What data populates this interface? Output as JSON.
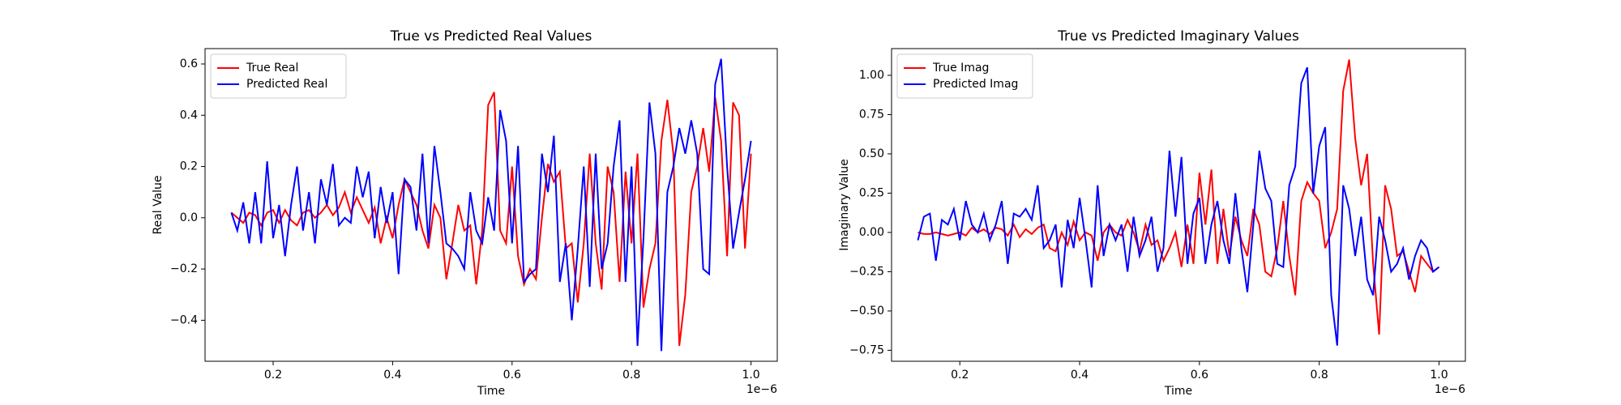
{
  "chart_data": [
    {
      "type": "line",
      "title": "True vs Predicted Real Values",
      "xlabel": "Time",
      "ylabel": "Real Value",
      "x_offset_label": "1e−6",
      "x": [
        0.13,
        0.14,
        0.15,
        0.16,
        0.17,
        0.18,
        0.19,
        0.2,
        0.21,
        0.22,
        0.23,
        0.24,
        0.25,
        0.26,
        0.27,
        0.28,
        0.29,
        0.3,
        0.31,
        0.32,
        0.33,
        0.34,
        0.35,
        0.36,
        0.37,
        0.38,
        0.39,
        0.4,
        0.41,
        0.42,
        0.43,
        0.44,
        0.45,
        0.46,
        0.47,
        0.48,
        0.49,
        0.5,
        0.51,
        0.52,
        0.53,
        0.54,
        0.55,
        0.56,
        0.57,
        0.58,
        0.59,
        0.6,
        0.61,
        0.62,
        0.63,
        0.64,
        0.65,
        0.66,
        0.67,
        0.68,
        0.69,
        0.7,
        0.71,
        0.72,
        0.73,
        0.74,
        0.75,
        0.76,
        0.77,
        0.78,
        0.79,
        0.8,
        0.81,
        0.82,
        0.83,
        0.84,
        0.85,
        0.86,
        0.87,
        0.88,
        0.89,
        0.9,
        0.91,
        0.92,
        0.93,
        0.94,
        0.95,
        0.96,
        0.97,
        0.98,
        0.99,
        1.0
      ],
      "series": [
        {
          "name": "True Real",
          "color": "#ff0000",
          "values": [
            0.02,
            0.0,
            -0.02,
            0.02,
            0.01,
            -0.03,
            0.02,
            0.03,
            -0.02,
            0.03,
            -0.01,
            -0.03,
            0.02,
            0.03,
            0.0,
            0.02,
            0.05,
            0.01,
            0.04,
            0.1,
            0.02,
            0.08,
            0.03,
            -0.02,
            0.04,
            -0.1,
            0.0,
            -0.08,
            0.05,
            0.15,
            0.1,
            0.05,
            -0.05,
            -0.12,
            0.05,
            0.0,
            -0.24,
            -0.1,
            0.05,
            -0.05,
            -0.03,
            -0.26,
            -0.05,
            0.44,
            0.49,
            -0.05,
            -0.1,
            0.2,
            -0.15,
            -0.26,
            -0.2,
            -0.24,
            0.0,
            0.21,
            0.14,
            0.18,
            -0.12,
            -0.1,
            -0.33,
            -0.1,
            0.25,
            -0.1,
            -0.28,
            0.2,
            0.1,
            -0.25,
            0.18,
            -0.1,
            0.25,
            -0.35,
            -0.2,
            -0.1,
            0.3,
            0.46,
            0.25,
            -0.5,
            -0.3,
            0.1,
            0.2,
            0.35,
            0.18,
            0.47,
            0.3,
            -0.15,
            0.45,
            0.4,
            -0.12,
            0.25
          ]
        },
        {
          "name": "Predicted Real",
          "color": "#0000ff",
          "values": [
            0.02,
            -0.05,
            0.06,
            -0.1,
            0.1,
            -0.1,
            0.22,
            -0.08,
            0.05,
            -0.15,
            0.05,
            0.2,
            -0.05,
            0.1,
            -0.1,
            0.15,
            0.05,
            0.21,
            -0.03,
            0.0,
            -0.02,
            0.2,
            0.08,
            0.18,
            -0.08,
            0.12,
            -0.02,
            0.1,
            -0.22,
            0.15,
            0.12,
            -0.05,
            0.25,
            -0.1,
            0.28,
            0.1,
            -0.1,
            -0.12,
            -0.15,
            -0.2,
            0.1,
            -0.05,
            -0.1,
            0.08,
            -0.05,
            0.42,
            0.3,
            -0.1,
            0.28,
            -0.25,
            -0.22,
            -0.2,
            0.25,
            0.1,
            0.32,
            -0.25,
            -0.1,
            -0.4,
            -0.12,
            0.2,
            -0.27,
            0.25,
            -0.2,
            -0.1,
            0.2,
            0.38,
            -0.25,
            0.2,
            -0.5,
            -0.08,
            0.45,
            0.25,
            -0.52,
            0.1,
            0.2,
            0.35,
            0.25,
            0.38,
            0.25,
            -0.2,
            -0.22,
            0.52,
            0.62,
            0.2,
            -0.12,
            0.02,
            0.15,
            0.3
          ]
        }
      ],
      "xlim": [
        0.086,
        1.044
      ],
      "xticks": [
        0.2,
        0.4,
        0.6,
        0.8,
        {
          "value": 1.0,
          "label": "1.0"
        }
      ],
      "ylim": [
        -0.56,
        0.66
      ],
      "yticks": [
        {
          "value": -0.4,
          "label": "−0.4"
        },
        {
          "value": -0.2,
          "label": "−0.2"
        },
        {
          "value": 0.0,
          "label": "0.0"
        },
        0.2,
        0.4,
        0.6
      ],
      "legend": "upper left"
    },
    {
      "type": "line",
      "title": "True vs Predicted Imaginary Values",
      "xlabel": "Time",
      "ylabel": "Imaginary Value",
      "x_offset_label": "1e−6",
      "x": [
        0.13,
        0.14,
        0.15,
        0.16,
        0.17,
        0.18,
        0.19,
        0.2,
        0.21,
        0.22,
        0.23,
        0.24,
        0.25,
        0.26,
        0.27,
        0.28,
        0.29,
        0.3,
        0.31,
        0.32,
        0.33,
        0.34,
        0.35,
        0.36,
        0.37,
        0.38,
        0.39,
        0.4,
        0.41,
        0.42,
        0.43,
        0.44,
        0.45,
        0.46,
        0.47,
        0.48,
        0.49,
        0.5,
        0.51,
        0.52,
        0.53,
        0.54,
        0.55,
        0.56,
        0.57,
        0.58,
        0.59,
        0.6,
        0.61,
        0.62,
        0.63,
        0.64,
        0.65,
        0.66,
        0.67,
        0.68,
        0.69,
        0.7,
        0.71,
        0.72,
        0.73,
        0.74,
        0.75,
        0.76,
        0.77,
        0.78,
        0.79,
        0.8,
        0.81,
        0.82,
        0.83,
        0.84,
        0.85,
        0.86,
        0.87,
        0.88,
        0.89,
        0.9,
        0.91,
        0.92,
        0.93,
        0.94,
        0.95,
        0.96,
        0.97,
        0.98,
        0.99,
        1.0
      ],
      "series": [
        {
          "name": "True Imag",
          "color": "#ff0000",
          "values": [
            0.0,
            -0.01,
            -0.01,
            0.0,
            -0.01,
            -0.02,
            -0.01,
            0.0,
            -0.02,
            0.03,
            0.0,
            0.02,
            -0.01,
            0.03,
            0.02,
            -0.02,
            0.05,
            -0.03,
            0.02,
            -0.01,
            0.03,
            0.05,
            -0.1,
            -0.12,
            0.0,
            -0.08,
            0.07,
            -0.05,
            0.0,
            -0.02,
            -0.18,
            0.0,
            0.05,
            0.0,
            -0.02,
            0.08,
            0.0,
            -0.12,
            0.05,
            -0.08,
            -0.05,
            -0.18,
            -0.1,
            0.0,
            -0.22,
            0.05,
            -0.2,
            0.38,
            0.05,
            0.4,
            -0.2,
            0.15,
            -0.15,
            0.1,
            -0.05,
            -0.15,
            0.15,
            0.05,
            -0.25,
            -0.28,
            -0.1,
            0.2,
            -0.15,
            -0.4,
            0.2,
            0.32,
            0.25,
            0.2,
            -0.1,
            0.0,
            0.15,
            0.9,
            1.1,
            0.6,
            0.3,
            0.5,
            -0.2,
            -0.65,
            0.3,
            0.15,
            -0.15,
            -0.12,
            -0.25,
            -0.38,
            -0.15,
            -0.2,
            -0.25,
            -0.22
          ]
        },
        {
          "name": "Predicted Imag",
          "color": "#0000ff",
          "values": [
            -0.05,
            0.1,
            0.12,
            -0.18,
            0.08,
            0.05,
            0.15,
            -0.05,
            0.2,
            0.05,
            0.0,
            0.12,
            -0.05,
            0.05,
            0.2,
            -0.2,
            0.12,
            0.1,
            0.15,
            0.08,
            0.3,
            -0.1,
            -0.05,
            0.05,
            -0.35,
            0.08,
            -0.1,
            0.22,
            -0.05,
            -0.35,
            0.3,
            -0.15,
            0.05,
            -0.05,
            0.05,
            -0.25,
            0.1,
            -0.15,
            -0.05,
            0.1,
            -0.25,
            -0.1,
            0.52,
            0.1,
            0.48,
            -0.2,
            0.12,
            0.22,
            -0.2,
            0.05,
            0.2,
            -0.05,
            -0.2,
            0.25,
            -0.1,
            -0.38,
            0.05,
            0.52,
            0.28,
            0.2,
            -0.2,
            -0.22,
            0.3,
            0.42,
            0.95,
            1.05,
            0.25,
            0.55,
            0.67,
            -0.4,
            -0.72,
            0.3,
            0.15,
            -0.15,
            0.1,
            -0.3,
            -0.4,
            0.1,
            -0.05,
            -0.25,
            -0.2,
            -0.1,
            -0.3,
            -0.15,
            -0.05,
            -0.1,
            -0.25,
            -0.22
          ]
        }
      ],
      "xlim": [
        0.086,
        1.044
      ],
      "xticks": [
        0.2,
        0.4,
        0.6,
        0.8,
        {
          "value": 1.0,
          "label": "1.0"
        }
      ],
      "ylim": [
        -0.82,
        1.17
      ],
      "yticks": [
        {
          "value": -0.75,
          "label": "−0.75"
        },
        {
          "value": -0.5,
          "label": "−0.50"
        },
        {
          "value": -0.25,
          "label": "−0.25"
        },
        {
          "value": 0.0,
          "label": "0.00"
        },
        0.25,
        {
          "value": 0.5,
          "label": "0.50"
        },
        0.75,
        {
          "value": 1.0,
          "label": "1.00"
        }
      ],
      "legend": "upper left"
    }
  ]
}
